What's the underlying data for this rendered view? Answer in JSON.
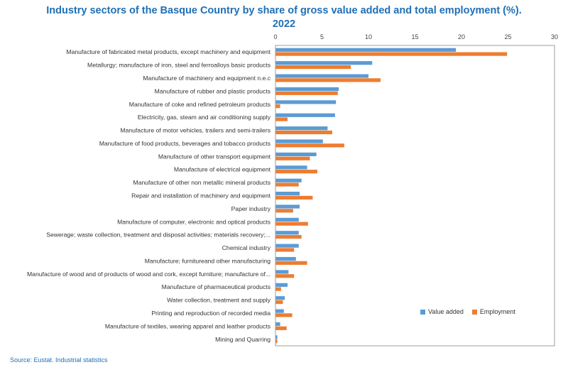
{
  "chart_data": {
    "type": "bar",
    "orientation": "horizontal",
    "title_line1": "Industry sectors of the Basque Country by share of gross value added and total employment (%).",
    "title_line2": "2022",
    "source": "Source: Eustat. Industrial statistics",
    "xlim": [
      0,
      30
    ],
    "xticks": [
      "0",
      "5",
      "10",
      "15",
      "20",
      "25",
      "30"
    ],
    "axis_position": "top",
    "legend_placement": "right, near bottom",
    "categories": [
      "Manufacture of fabricated metal products, except machinery and equipment",
      "Metallurgy; manufacture of iron, steel and ferroalloys basic products",
      "Manufacture of machinery and equipment n.e.c",
      "Manufacture of rubber and plastic products",
      "Manufacture of coke and refined petroleum products",
      "Electricity, gas, steam and air conditioning supply",
      "Manufacture of motor vehicles, trailers and semi-trailers",
      "Manufacture of food products, beverages and tobacco products",
      "Manufacture of other transport equipment",
      "Manufacture of electrical equipment",
      "Manufacture of other non metallic mineral products",
      "Repair and installation of machinery and equipment",
      "Paper industry",
      "Manufacture of computer, electronic and optical products",
      "Sewerage; waste collection, treatment and disposal activities; materials recovery;...",
      "Chemical industry",
      "Manufacture; furnitureand other manufacturing",
      "Manufacture of wood and of products of wood and cork, except furniture; manufacture of...",
      "Manufacture of pharmaceutical products",
      "Water collection, treatment and supply",
      "Printing and reproduction of recorded media",
      "Manufacture of textiles, wearing apparel and leather products",
      "Mining and Quarring"
    ],
    "series": [
      {
        "name": "Value added",
        "color": "#5b9bd5",
        "values": [
          19.4,
          10.4,
          10.0,
          6.8,
          6.5,
          6.4,
          5.6,
          5.1,
          4.4,
          3.4,
          2.8,
          2.6,
          2.6,
          2.5,
          2.5,
          2.5,
          2.2,
          1.4,
          1.3,
          1.0,
          0.9,
          0.5,
          0.2
        ]
      },
      {
        "name": "Employment",
        "color": "#ed7d31",
        "values": [
          24.9,
          8.1,
          11.3,
          6.7,
          0.5,
          1.3,
          6.1,
          7.4,
          3.7,
          4.5,
          2.5,
          4.0,
          1.9,
          3.5,
          2.8,
          2.0,
          3.4,
          2.0,
          0.6,
          0.8,
          1.8,
          1.2,
          0.2
        ]
      }
    ]
  }
}
